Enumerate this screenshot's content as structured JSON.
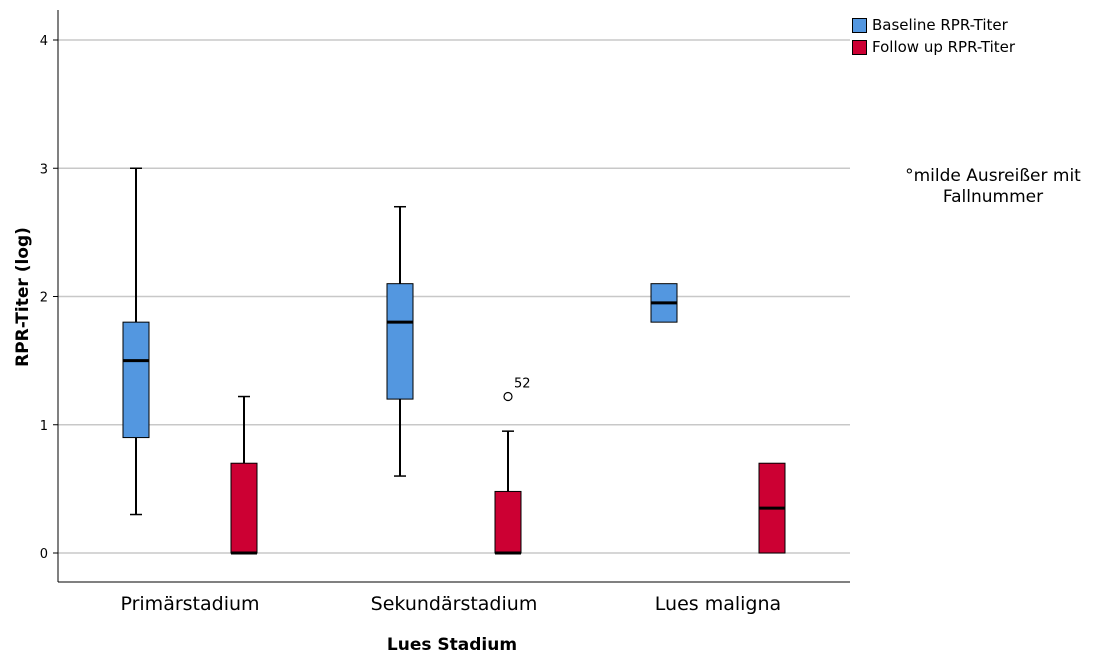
{
  "chart_data": {
    "type": "box",
    "xlabel": "Lues Stadium",
    "ylabel": "RPR-Titer (log)",
    "ylim": [
      0,
      4.2
    ],
    "yticks": [
      "0",
      "1",
      "2",
      "3",
      "4"
    ],
    "grid": true,
    "legend_position": "top-right",
    "categories": [
      "Primärstadium",
      "Sekundärstadium",
      "Lues maligna"
    ],
    "series": [
      {
        "name": "Baseline RPR-Titer",
        "color": "#5397E0",
        "boxes": [
          {
            "min": 0.3,
            "q1": 0.9,
            "median": 1.5,
            "q3": 1.8,
            "max": 3.0,
            "outliers": []
          },
          {
            "min": 0.6,
            "q1": 1.2,
            "median": 1.8,
            "q3": 2.1,
            "max": 2.7,
            "outliers": []
          },
          {
            "min": 1.8,
            "q1": 1.8,
            "median": 1.95,
            "q3": 2.1,
            "max": 2.1,
            "outliers": []
          }
        ]
      },
      {
        "name": "Follow up RPR-Titer",
        "color": "#CC0033",
        "boxes": [
          {
            "min": 0,
            "q1": 0,
            "median": 0,
            "q3": 0.7,
            "max": 1.22,
            "outliers": []
          },
          {
            "min": 0,
            "q1": 0,
            "median": 0,
            "q3": 0.48,
            "max": 0.95,
            "outliers": [
              {
                "value": 1.22,
                "label": "52"
              }
            ]
          },
          {
            "min": 0,
            "q1": 0,
            "median": 0.35,
            "q3": 0.7,
            "max": 0.7,
            "outliers": []
          }
        ]
      }
    ],
    "annotation": [
      "°milde Ausreißer mit",
      "Fallnummer"
    ]
  }
}
